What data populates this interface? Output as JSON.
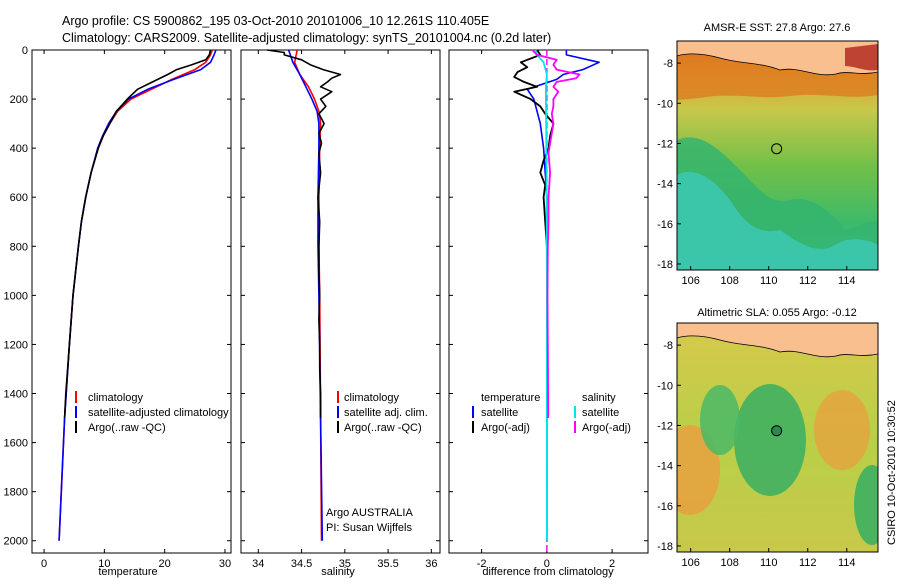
{
  "title": {
    "line1": "Argo profile: CS 5900862_195 03-Oct-2010 20101006_10 12.261S 110.405E",
    "line2": "Climatology: CARS2009. Satellite-adjusted climatology: synTS_20101004.nc (0.2d later)"
  },
  "credit": "CSIRO 10-Oct-2010 10:30:52",
  "colors": {
    "climatology": "#ff0000",
    "satellite": "#0000ff",
    "argo": "#000000",
    "sat_salinity": "#00e5e5",
    "argo_salinity_diff": "#ff00ff",
    "land": "#f9bf8f"
  },
  "chart_data": [
    {
      "type": "line",
      "id": "temperature",
      "xlabel": "temperature",
      "ylabel": "",
      "xlim": [
        -2,
        31
      ],
      "ylim": [
        2050,
        0
      ],
      "xticks": [
        0,
        10,
        20,
        30
      ],
      "yticks": [
        0,
        200,
        400,
        600,
        800,
        1000,
        1200,
        1400,
        1600,
        1800,
        2000
      ],
      "legend": [
        "climatology",
        "satellite-adjusted climatology",
        "Argo(..raw -QC)"
      ],
      "series": [
        {
          "name": "climatology",
          "depth": [
            0,
            20,
            50,
            80,
            120,
            160,
            200,
            250,
            300,
            350,
            400,
            500,
            600,
            700,
            800,
            1000,
            1200,
            1500,
            2000
          ],
          "values": [
            27.9,
            27.6,
            26.8,
            25.0,
            21.2,
            17.8,
            14.4,
            12.2,
            10.9,
            9.8,
            9.0,
            7.8,
            6.9,
            6.2,
            5.7,
            4.8,
            4.2,
            3.4,
            2.5
          ]
        },
        {
          "name": "satellite-adjusted climatology",
          "depth": [
            0,
            20,
            50,
            80,
            120,
            160,
            200,
            250,
            300,
            350,
            400,
            500,
            600,
            700,
            800,
            1000,
            1200,
            1500,
            2000
          ],
          "values": [
            28.5,
            28.2,
            27.6,
            26.0,
            21.5,
            17.2,
            14.0,
            12.0,
            10.7,
            9.7,
            8.9,
            7.8,
            6.9,
            6.2,
            5.7,
            4.8,
            4.2,
            3.4,
            2.5
          ]
        },
        {
          "name": "Argo(..raw -QC)",
          "depth": [
            0,
            20,
            40,
            60,
            80,
            100,
            130,
            160,
            200,
            250,
            300,
            350,
            400,
            500,
            600,
            700,
            800,
            1000,
            1200,
            1400,
            1500
          ],
          "values": [
            27.6,
            27.4,
            26.8,
            24.5,
            22.0,
            20.5,
            18.0,
            15.5,
            13.8,
            12.0,
            10.9,
            9.8,
            9.0,
            7.8,
            6.9,
            6.2,
            5.7,
            4.8,
            4.2,
            3.6,
            3.4
          ]
        }
      ]
    },
    {
      "type": "line",
      "id": "salinity",
      "xlabel": "salinity",
      "xlim": [
        33.8,
        36.1
      ],
      "ylim": [
        2050,
        0
      ],
      "xticks": [
        34,
        34.5,
        35,
        35.5,
        36
      ],
      "legend": [
        "climatology",
        "satellite adj. clim.",
        "Argo(..raw -QC)"
      ],
      "annotations": [
        "Argo AUSTRALIA",
        "PI: Susan Wijffels"
      ],
      "series": [
        {
          "name": "climatology",
          "depth": [
            0,
            50,
            100,
            150,
            200,
            250,
            300,
            400,
            600,
            800,
            1000,
            1500,
            2000
          ],
          "values": [
            34.45,
            34.42,
            34.48,
            34.58,
            34.65,
            34.7,
            34.72,
            34.71,
            34.7,
            34.7,
            34.71,
            34.72,
            34.73
          ]
        },
        {
          "name": "satellite adj. clim.",
          "depth": [
            0,
            50,
            100,
            150,
            200,
            250,
            300,
            400,
            600,
            800,
            1000,
            1500,
            2000
          ],
          "values": [
            34.35,
            34.4,
            34.48,
            34.55,
            34.62,
            34.68,
            34.7,
            34.7,
            34.69,
            34.69,
            34.7,
            34.72,
            34.74
          ]
        },
        {
          "name": "Argo(..raw -QC)",
          "depth": [
            0,
            10,
            20,
            40,
            60,
            80,
            100,
            115,
            130,
            150,
            170,
            200,
            230,
            260,
            300,
            340,
            380,
            420,
            500,
            600,
            700,
            800,
            900,
            1000,
            1100,
            1200,
            1300,
            1400,
            1500
          ],
          "values": [
            34.1,
            34.3,
            34.3,
            34.5,
            34.6,
            34.75,
            34.95,
            34.85,
            34.8,
            34.72,
            34.85,
            34.72,
            34.78,
            34.7,
            34.76,
            34.7,
            34.73,
            34.7,
            34.72,
            34.69,
            34.71,
            34.7,
            34.7,
            34.71,
            34.7,
            34.71,
            34.71,
            34.72,
            34.72
          ]
        }
      ]
    },
    {
      "type": "line",
      "id": "difference",
      "xlabel": "difference from climatology",
      "xlim": [
        -3,
        3.1
      ],
      "ylim": [
        2050,
        0
      ],
      "xticks": [
        -2,
        0,
        2
      ],
      "legend": {
        "temperature_head": "temperature",
        "salinity_head": "salinity",
        "items": [
          "satellite",
          "Argo(-adj)",
          "satellite",
          "Argo(-adj)"
        ]
      },
      "series": [
        {
          "name": "temperature satellite",
          "depth": [
            0,
            20,
            50,
            80,
            100,
            120,
            160,
            200,
            300,
            400,
            600,
            1000,
            1500,
            2000
          ],
          "values": [
            0.6,
            0.6,
            1.6,
            1.1,
            0.5,
            0.3,
            -0.6,
            -0.4,
            -0.2,
            -0.1,
            0,
            0,
            0,
            0
          ]
        },
        {
          "name": "temperature Argo(-adj)",
          "depth": [
            0,
            20,
            50,
            70,
            90,
            110,
            130,
            150,
            170,
            200,
            230,
            260,
            300,
            350,
            400,
            450,
            500,
            550,
            600,
            700,
            800,
            900,
            1000,
            1200,
            1400,
            1500
          ],
          "values": [
            -0.3,
            -0.2,
            -0.8,
            -0.6,
            -0.9,
            -1.0,
            -0.7,
            -0.3,
            -1.0,
            -0.5,
            -0.2,
            -0.05,
            0.2,
            0.1,
            0.05,
            -0.1,
            -0.2,
            -0.05,
            -0.1,
            -0.05,
            0,
            0,
            0,
            0,
            0,
            0
          ]
        },
        {
          "name": "salinity satellite",
          "depth": [
            0,
            20,
            50,
            100,
            150,
            200,
            300,
            500,
            1000,
            1500,
            2000
          ],
          "values": [
            -0.35,
            -0.3,
            -0.1,
            0.0,
            -0.03,
            -0.03,
            -0.02,
            -0.01,
            0,
            0,
            0
          ]
        },
        {
          "name": "salinity Argo(-adj)",
          "depth": [
            0,
            20,
            40,
            60,
            80,
            100,
            115,
            130,
            150,
            170,
            200,
            230,
            260,
            300,
            340,
            380,
            420,
            500,
            600,
            700,
            800,
            1000,
            1200,
            1500
          ],
          "values": [
            -0.45,
            -0.3,
            0.3,
            0.2,
            0.3,
            1.0,
            0.9,
            0.3,
            0.2,
            0.35,
            0.2,
            0.2,
            0.15,
            0.2,
            0.15,
            0.1,
            0.05,
            0.1,
            0.05,
            0.05,
            0.03,
            0.02,
            0.03,
            0.04
          ]
        }
      ]
    },
    {
      "type": "heatmap",
      "id": "sst-map",
      "title": "AMSR-E SST: 27.8 Argo: 27.6",
      "xlim": [
        105.3,
        115.6
      ],
      "ylim": [
        -18.3,
        -6.9
      ],
      "xticks": [
        106,
        108,
        110,
        112,
        114
      ],
      "yticks": [
        -8,
        -10,
        -12,
        -14,
        -16,
        -18
      ],
      "marker": {
        "lon": 110.405,
        "lat": -12.261,
        "filled": false
      }
    },
    {
      "type": "heatmap",
      "id": "sla-map",
      "title": "Altimetric SLA: 0.055 Argo: -0.12",
      "xlim": [
        105.3,
        115.6
      ],
      "ylim": [
        -18.3,
        -6.9
      ],
      "xticks": [
        106,
        108,
        110,
        112,
        114
      ],
      "yticks": [
        -8,
        -10,
        -12,
        -14,
        -16,
        -18
      ],
      "marker": {
        "lon": 110.405,
        "lat": -12.261,
        "filled": true
      }
    }
  ]
}
